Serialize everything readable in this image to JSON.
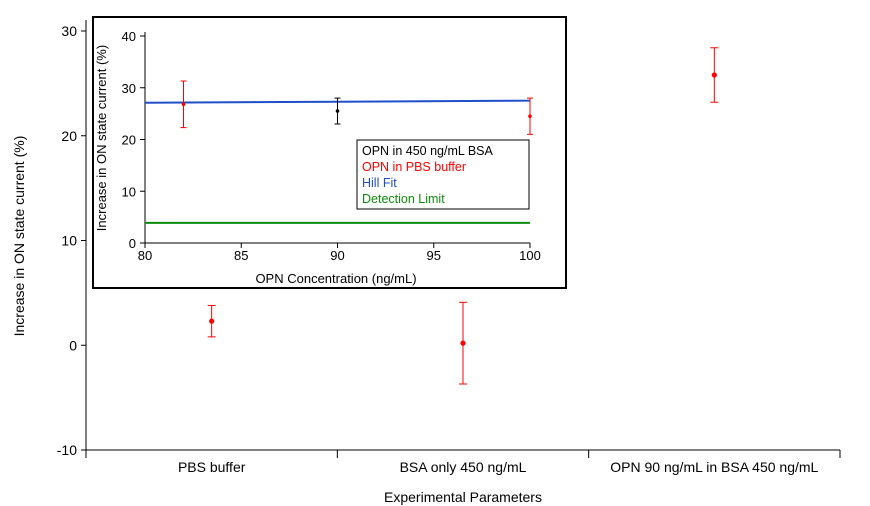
{
  "chart_data": [
    {
      "type": "scatter",
      "xlabel": "Experimental Parameters",
      "ylabel": "Increase in ON state current (%)",
      "ylim": [
        -10,
        30
      ],
      "yticks": [
        -10,
        0,
        10,
        20,
        30
      ],
      "categories": [
        "PBS buffer",
        "BSA only 450 ng/mL",
        "OPN 90 ng/mL in BSA 450 ng/mL"
      ],
      "series": [
        {
          "color": "#ff0000",
          "values": [
            2.3,
            0.2,
            25.8
          ],
          "errors": [
            1.5,
            3.9,
            2.6
          ]
        }
      ],
      "grid": false
    },
    {
      "type": "line",
      "xlabel": "OPN Concentration (ng/mL)",
      "ylabel": "Increase in ON state current (%)",
      "xlim": [
        80,
        100
      ],
      "ylim": [
        0,
        40
      ],
      "xticks": [
        80,
        85,
        90,
        95,
        100
      ],
      "yticks": [
        0,
        10,
        20,
        30,
        40
      ],
      "legend_position": "right",
      "series": [
        {
          "name": "OPN in 450 ng/mL BSA",
          "color": "#000000",
          "type": "scatter",
          "points": [
            {
              "x": 90,
              "y": 25.5,
              "error": 2.5
            }
          ]
        },
        {
          "name": "OPN in PBS buffer",
          "color": "#ff0000",
          "type": "scatter",
          "points": [
            {
              "x": 82,
              "y": 26.8,
              "error": 4.5
            },
            {
              "x": 100,
              "y": 24.5,
              "error": 3.5
            }
          ]
        },
        {
          "name": "Hill Fit",
          "color": "#1f4fc8",
          "type": "line",
          "points": [
            {
              "x": 80,
              "y": 27.1
            },
            {
              "x": 90,
              "y": 27.3
            },
            {
              "x": 100,
              "y": 27.5
            }
          ]
        },
        {
          "name": "Detection Limit",
          "color": "#0c8c0c",
          "type": "line",
          "points": [
            {
              "x": 80,
              "y": 3.9
            },
            {
              "x": 100,
              "y": 3.9
            }
          ]
        }
      ],
      "grid": false
    }
  ]
}
